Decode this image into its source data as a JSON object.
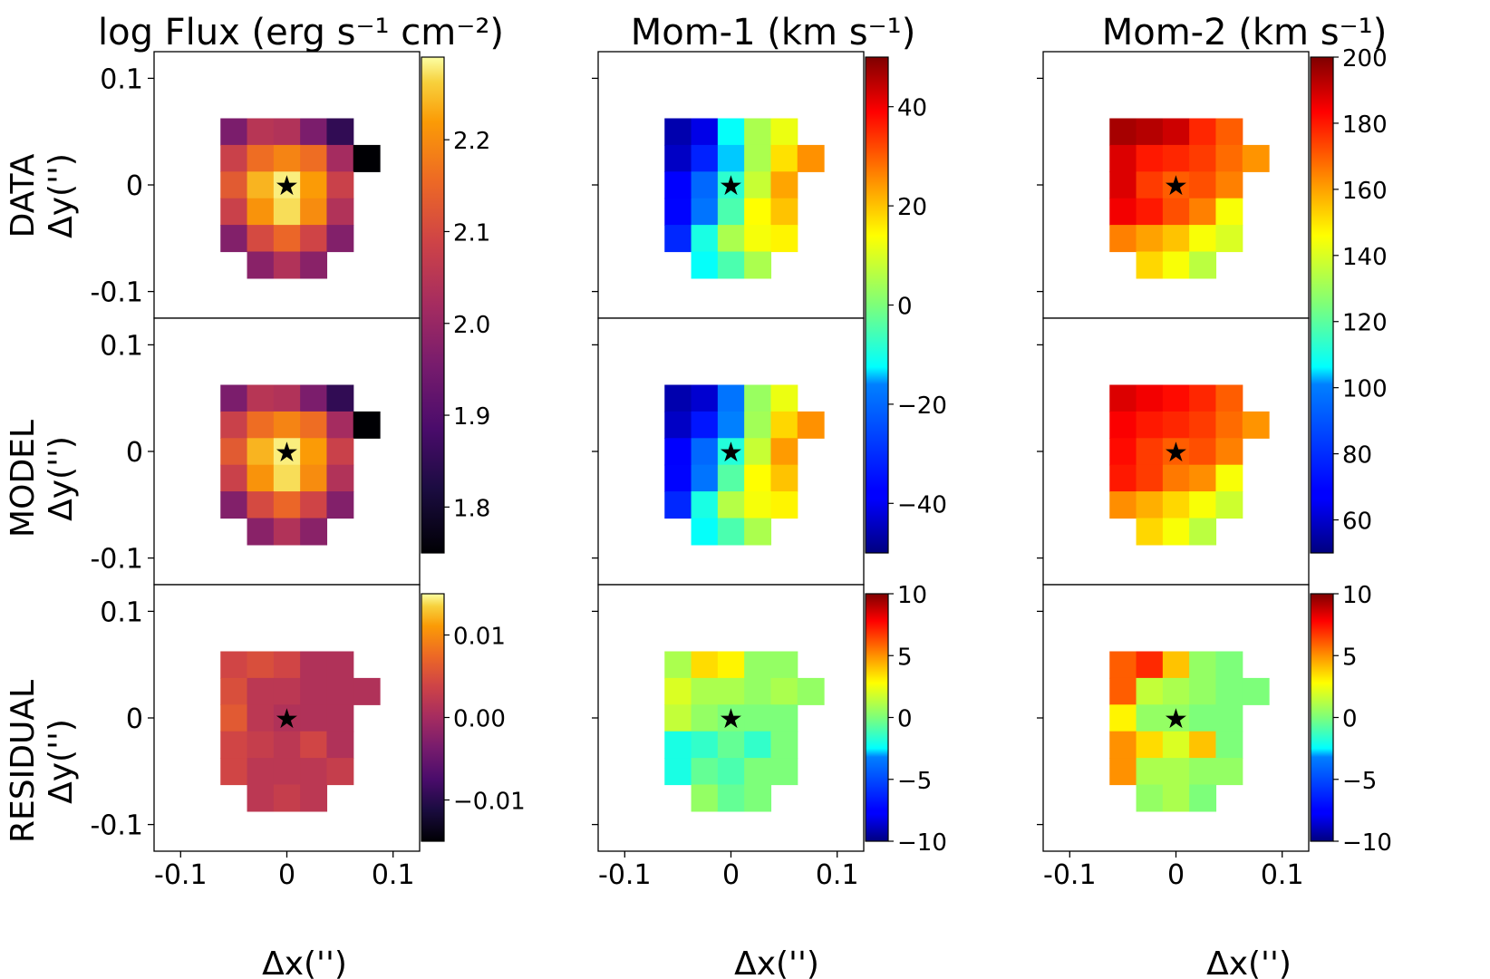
{
  "chart_data": {
    "type": "heatmap",
    "titles": [
      "log Flux (erg s⁻¹ cm⁻²)",
      "Mom-1 (km s⁻¹)",
      "Mom-2 (km s⁻¹)"
    ],
    "row_labels": [
      "DATA",
      "MODEL",
      "RESIDUAL"
    ],
    "ylabel": "Δy('')",
    "xlabel": "Δx('')",
    "axis_range": [
      -0.125,
      0.125
    ],
    "x_ticks": [
      "-0.1",
      "0",
      "0.1"
    ],
    "y_ticks": [
      "0.1",
      "0",
      "-0.1"
    ],
    "tick_values": [
      -0.1,
      0,
      0.1
    ],
    "pixel_size": 0.025,
    "star_marker": "★",
    "colorbars": {
      "flux": {
        "cmap": "inferno",
        "range": [
          1.75,
          2.29
        ],
        "ticks": [
          1.8,
          1.9,
          2.0,
          2.1,
          2.2
        ],
        "tick_labels": [
          "1.8",
          "1.9",
          "2.0",
          "2.1",
          "2.2"
        ]
      },
      "flux_res": {
        "cmap": "inferno",
        "range": [
          -0.015,
          0.015
        ],
        "ticks": [
          -0.01,
          0.0,
          0.01
        ],
        "tick_labels": [
          "−0.01",
          "0.00",
          "0.01"
        ]
      },
      "mom1": {
        "cmap": "jet",
        "range": [
          -50,
          50
        ],
        "ticks": [
          -40,
          -20,
          0,
          20,
          40
        ],
        "tick_labels": [
          "−40",
          "−20",
          "0",
          "20",
          "40"
        ]
      },
      "mom1_res": {
        "cmap": "jet",
        "range": [
          -10,
          10
        ],
        "ticks": [
          -10,
          -5,
          0,
          5,
          10
        ],
        "tick_labels": [
          "−10",
          "−5",
          "0",
          "5",
          "10"
        ]
      },
      "mom2": {
        "cmap": "jet",
        "range": [
          50,
          200
        ],
        "ticks": [
          60,
          80,
          100,
          120,
          140,
          160,
          180,
          200
        ],
        "tick_labels": [
          "60",
          "80",
          "100",
          "120",
          "140",
          "160",
          "180",
          "200"
        ]
      },
      "mom2_res": {
        "cmap": "jet",
        "range": [
          -10,
          10
        ],
        "ticks": [
          -10,
          -5,
          0,
          5,
          10
        ],
        "tick_labels": [
          "−10",
          "−5",
          "0",
          "5",
          "10"
        ]
      }
    },
    "panels": {
      "flux_data": {
        "origin": [
          -0.0625,
          0.0625
        ],
        "values": [
          [
            1.96,
            2.05,
            2.04,
            1.96,
            1.85,
            null
          ],
          [
            2.08,
            2.16,
            2.19,
            2.16,
            2.02,
            1.75
          ],
          [
            2.13,
            2.24,
            2.28,
            2.22,
            2.08,
            null
          ],
          [
            2.08,
            2.21,
            2.27,
            2.2,
            2.04,
            null
          ],
          [
            1.97,
            2.1,
            2.15,
            2.09,
            1.97,
            null
          ],
          [
            null,
            1.98,
            2.04,
            1.98,
            null,
            null
          ]
        ]
      },
      "flux_model": {
        "origin": [
          -0.0625,
          0.0625
        ],
        "values": [
          [
            1.96,
            2.05,
            2.04,
            1.96,
            1.85,
            null
          ],
          [
            2.08,
            2.16,
            2.19,
            2.16,
            2.02,
            1.75
          ],
          [
            2.13,
            2.24,
            2.28,
            2.22,
            2.08,
            null
          ],
          [
            2.08,
            2.21,
            2.27,
            2.2,
            2.04,
            null
          ],
          [
            1.97,
            2.1,
            2.15,
            2.09,
            1.97,
            null
          ],
          [
            null,
            1.98,
            2.04,
            1.98,
            null,
            null
          ]
        ]
      },
      "flux_res": {
        "origin": [
          -0.0625,
          0.0625
        ],
        "values": [
          [
            0.004,
            0.005,
            0.004,
            0.001,
            0.001,
            null
          ],
          [
            0.005,
            0.002,
            0.002,
            0.001,
            0.001,
            0.001
          ],
          [
            0.006,
            0.002,
            0.001,
            0.001,
            0.001,
            null
          ],
          [
            0.004,
            0.003,
            0.002,
            0.004,
            0.001,
            null
          ],
          [
            0.004,
            0.002,
            0.002,
            0.002,
            0.003,
            null
          ],
          [
            null,
            0.002,
            0.003,
            0.002,
            null,
            null
          ]
        ]
      },
      "mom1_data": {
        "origin": [
          -0.0625,
          0.0625
        ],
        "values": [
          [
            -46,
            -41,
            -12,
            5,
            12,
            null
          ],
          [
            -44,
            -32,
            -14,
            5,
            17,
            25
          ],
          [
            -38,
            -20,
            -8,
            8,
            23,
            null
          ],
          [
            -37,
            -18,
            -5,
            14,
            20,
            null
          ],
          [
            -31,
            -10,
            5,
            13,
            15,
            null
          ],
          [
            null,
            -12,
            -5,
            5,
            null,
            null
          ]
        ]
      },
      "mom1_model": {
        "origin": [
          -0.0625,
          0.0625
        ],
        "values": [
          [
            -46,
            -43,
            -18,
            3,
            12,
            null
          ],
          [
            -44,
            -34,
            -16,
            4,
            18,
            25
          ],
          [
            -38,
            -20,
            -9,
            8,
            24,
            null
          ],
          [
            -37,
            -18,
            -4,
            14,
            20,
            null
          ],
          [
            -31,
            -10,
            6,
            13,
            15,
            null
          ],
          [
            null,
            -12,
            -5,
            5,
            null,
            null
          ]
        ]
      },
      "mom1_res": {
        "origin": [
          -0.0625,
          0.0625
        ],
        "values": [
          [
            1,
            3.5,
            3,
            0.5,
            0.5,
            null
          ],
          [
            2,
            1,
            1,
            0.5,
            1,
            0.5
          ],
          [
            1.5,
            0.5,
            0,
            0,
            0,
            null
          ],
          [
            -2,
            -1.5,
            -0.5,
            -1.5,
            0,
            null
          ],
          [
            -2,
            -0.5,
            -1,
            0,
            0,
            null
          ],
          [
            null,
            0.5,
            -0.5,
            0,
            null,
            null
          ]
        ]
      },
      "mom2_data": {
        "origin": [
          -0.0625,
          0.0625
        ],
        "values": [
          [
            195,
            193,
            190,
            178,
            170,
            null
          ],
          [
            188,
            180,
            178,
            175,
            168,
            162
          ],
          [
            188,
            175,
            170,
            172,
            165,
            null
          ],
          [
            185,
            180,
            172,
            165,
            145,
            null
          ],
          [
            165,
            160,
            155,
            145,
            140,
            null
          ],
          [
            null,
            152,
            145,
            135,
            null,
            null
          ]
        ]
      },
      "mom2_model": {
        "origin": [
          -0.0625,
          0.0625
        ],
        "values": [
          [
            188,
            185,
            182,
            178,
            170,
            null
          ],
          [
            184,
            180,
            178,
            175,
            168,
            162
          ],
          [
            182,
            175,
            170,
            172,
            165,
            null
          ],
          [
            180,
            175,
            166,
            163,
            145,
            null
          ],
          [
            163,
            158,
            152,
            145,
            138,
            null
          ],
          [
            null,
            152,
            145,
            135,
            null,
            null
          ]
        ]
      },
      "mom2_res": {
        "origin": [
          -0.0625,
          0.0625
        ],
        "values": [
          [
            6,
            7,
            4,
            0.5,
            0,
            null
          ],
          [
            6,
            1.5,
            1,
            0.5,
            0,
            0
          ],
          [
            3,
            0.5,
            0.5,
            0,
            0,
            null
          ],
          [
            5,
            3.5,
            2,
            4,
            0,
            null
          ],
          [
            5,
            1,
            1,
            0.5,
            0.5,
            null
          ],
          [
            null,
            0.5,
            1,
            0,
            null,
            null
          ]
        ]
      }
    }
  }
}
